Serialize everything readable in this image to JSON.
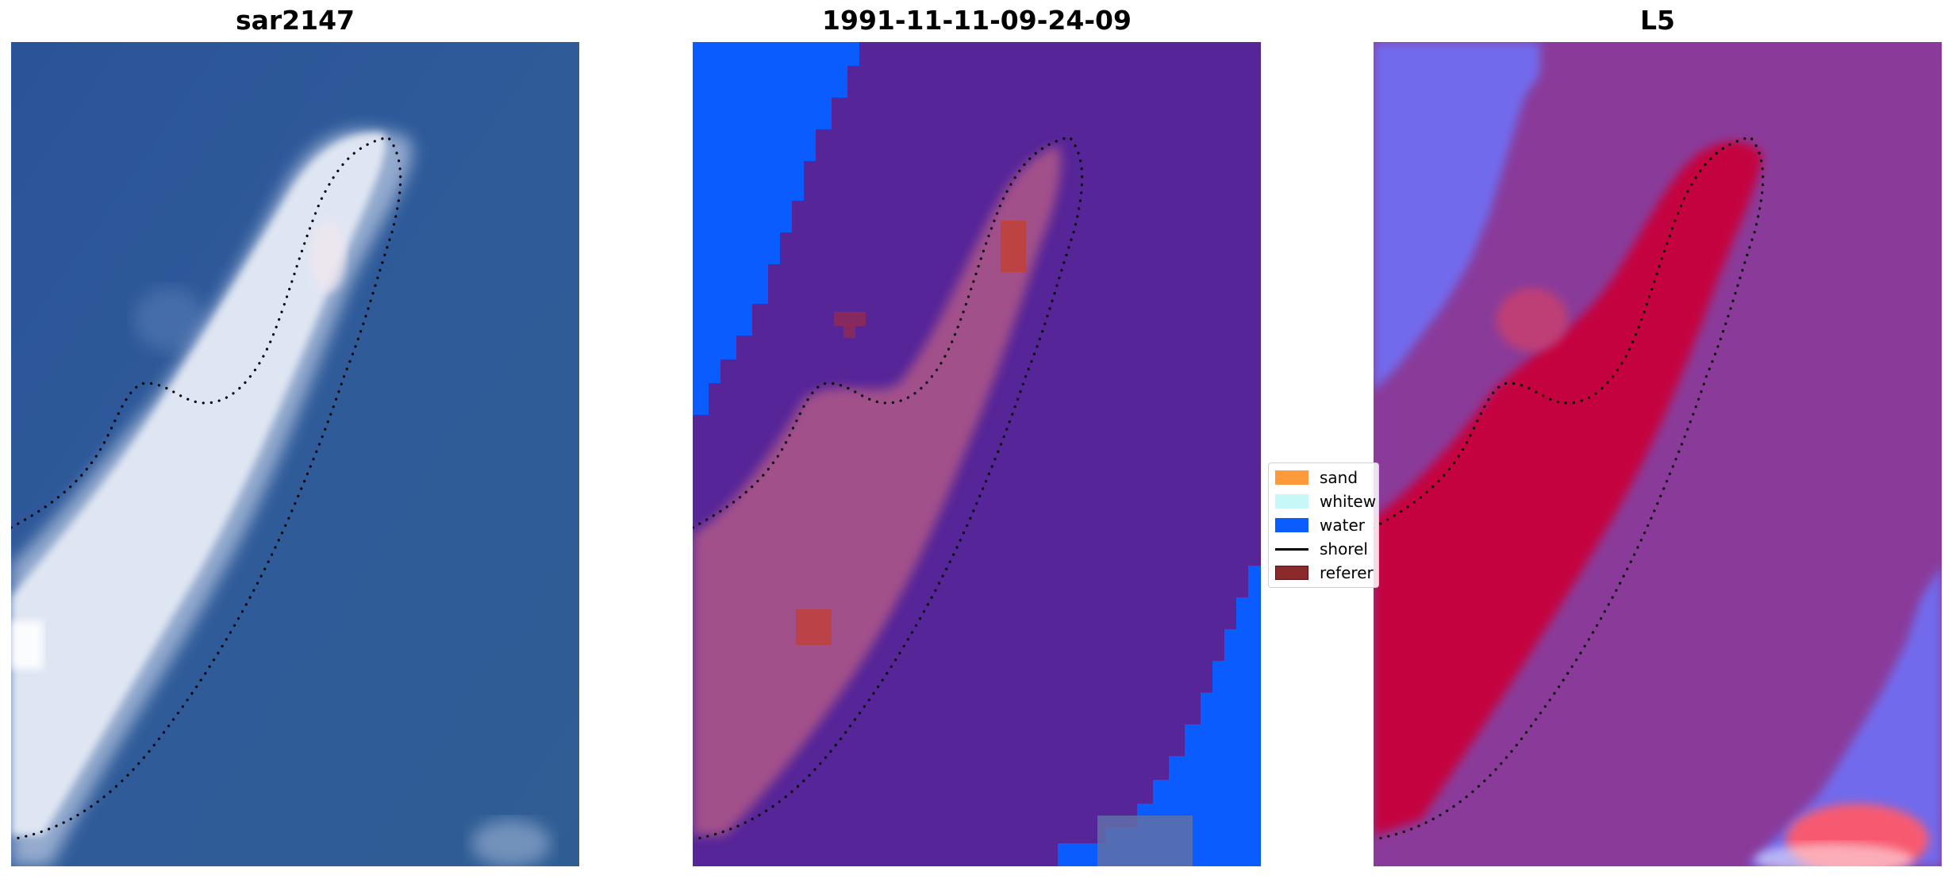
{
  "panels": [
    {
      "id": "rgb",
      "title": "sar2147"
    },
    {
      "id": "classified",
      "title": "1991-11-11-09-24-09"
    },
    {
      "id": "index",
      "title": "L5"
    }
  ],
  "legend": {
    "items": [
      {
        "label": "sand",
        "color": "#ff9a3c",
        "kind": "patch"
      },
      {
        "label": "whitew",
        "color": "#c8f7f7",
        "kind": "patch"
      },
      {
        "label": "water",
        "color": "#0a5cff",
        "kind": "patch"
      },
      {
        "label": "shorel",
        "color": "#000000",
        "kind": "line"
      },
      {
        "label": "referer",
        "color": "#8b2a2a",
        "kind": "patch"
      }
    ]
  },
  "colors": {
    "rgb_sea": "#2f5a98",
    "rgb_sand": "#dfe6f2",
    "class_water": "#0a5cff",
    "class_land": "#562598",
    "class_sand_overlay": "#b05888",
    "class_reference": "#c0403a",
    "index_background": "#8a3b9a",
    "index_high": "#c8003a",
    "index_low": "#6f6ff5",
    "shoreline": "#000000"
  }
}
